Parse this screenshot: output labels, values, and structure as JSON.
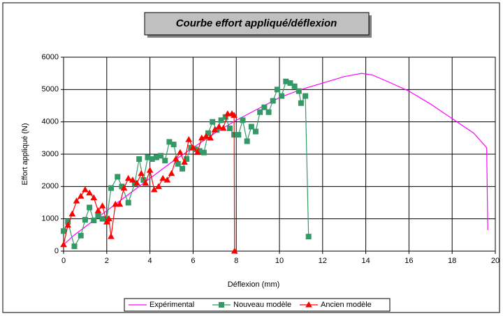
{
  "chart_data": {
    "type": "line",
    "title": "Courbe effort appliqué/déflexion",
    "xlabel": "Déflexion (mm)",
    "ylabel": "Effort appliqué (N)",
    "xlim": [
      0,
      20
    ],
    "xticks": [
      0,
      2,
      4,
      6,
      8,
      10,
      12,
      14,
      16,
      18,
      20
    ],
    "ylim": [
      0,
      6000
    ],
    "yticks": [
      0,
      1000,
      2000,
      3000,
      4000,
      5000,
      6000
    ],
    "grid": true,
    "legend": "bottom",
    "series": [
      {
        "name": "Expérimental",
        "color": "#ff00ff",
        "marker": "none",
        "x": [
          0,
          0.5,
          1,
          1.5,
          2,
          3,
          4,
          5,
          6,
          7,
          8,
          9,
          10,
          11,
          12,
          13,
          13.8,
          14.3,
          15,
          16,
          17,
          18,
          19,
          19.6,
          19.65
        ],
        "values": [
          200,
          500,
          750,
          1000,
          1250,
          1750,
          2250,
          2750,
          3200,
          3650,
          4050,
          4400,
          4750,
          5000,
          5200,
          5400,
          5500,
          5450,
          5250,
          4950,
          4550,
          4100,
          3650,
          3200,
          650
        ]
      },
      {
        "name": "Nouveau modèle",
        "color": "#339966",
        "marker": "square",
        "x": [
          0,
          0.2,
          0.5,
          0.8,
          1,
          1.2,
          1.4,
          1.6,
          1.8,
          2,
          2.2,
          2.5,
          2.7,
          3,
          3.3,
          3.5,
          3.7,
          3.9,
          4.1,
          4.3,
          4.5,
          4.7,
          4.9,
          5.1,
          5.3,
          5.5,
          5.7,
          5.9,
          6.1,
          6.3,
          6.5,
          6.7,
          6.9,
          7.1,
          7.3,
          7.5,
          7.7,
          7.9,
          8.1,
          8.3,
          8.5,
          8.7,
          8.9,
          9.1,
          9.3,
          9.5,
          9.7,
          9.9,
          10.1,
          10.3,
          10.5,
          10.7,
          10.9,
          11.0,
          11.2,
          11.35
        ],
        "values": [
          620,
          900,
          150,
          480,
          970,
          1350,
          950,
          1100,
          1000,
          1000,
          1950,
          2300,
          2000,
          1500,
          2100,
          2850,
          2200,
          2900,
          2850,
          2900,
          2950,
          2800,
          3380,
          3300,
          2700,
          2550,
          2850,
          3200,
          3150,
          3100,
          3050,
          3650,
          4000,
          3750,
          4050,
          4150,
          3800,
          3600,
          3600,
          4050,
          3400,
          3850,
          3700,
          4300,
          4450,
          4300,
          4650,
          5000,
          4800,
          5250,
          5200,
          5100,
          4950,
          4580,
          4800,
          450
        ]
      },
      {
        "name": "Ancien modèle",
        "color": "#ff0000",
        "marker": "triangle",
        "x": [
          0,
          0.2,
          0.4,
          0.6,
          0.8,
          1,
          1.2,
          1.4,
          1.6,
          1.8,
          2,
          2.1,
          2.2,
          2.4,
          2.6,
          2.8,
          3,
          3.2,
          3.4,
          3.6,
          3.8,
          4,
          4.2,
          4.4,
          4.6,
          4.8,
          5,
          5.2,
          5.4,
          5.6,
          5.8,
          6,
          6.2,
          6.4,
          6.6,
          6.8,
          7,
          7.2,
          7.4,
          7.6,
          7.8,
          7.9,
          7.92
        ],
        "values": [
          200,
          800,
          1150,
          1550,
          1700,
          1900,
          1800,
          1650,
          1250,
          1400,
          900,
          1000,
          450,
          1450,
          1450,
          1950,
          2250,
          2200,
          2100,
          2400,
          2100,
          2500,
          1900,
          2000,
          2250,
          2200,
          2400,
          2850,
          3050,
          2750,
          3450,
          3200,
          3050,
          3500,
          3550,
          3500,
          3750,
          3850,
          3800,
          4250,
          4250,
          4200,
          0
        ]
      }
    ]
  }
}
